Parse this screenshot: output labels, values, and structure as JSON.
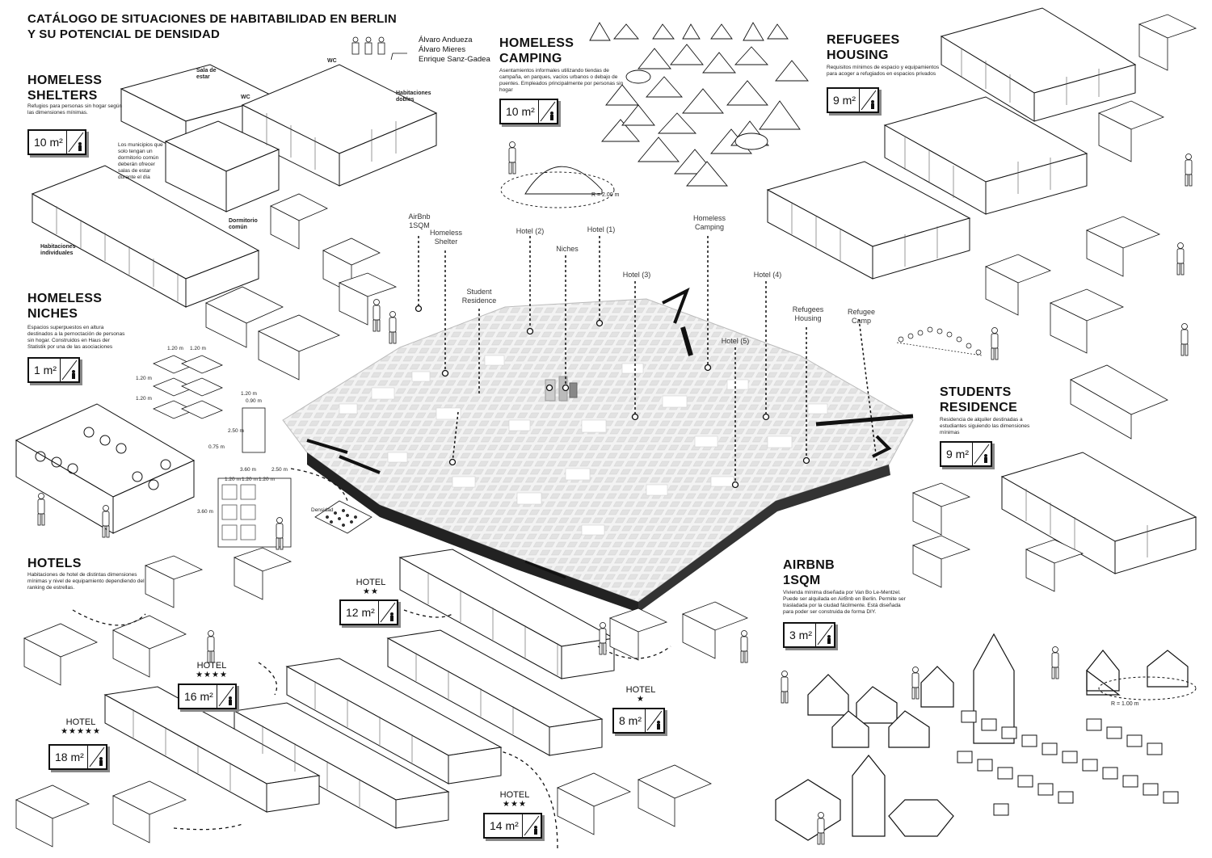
{
  "title": {
    "line1": "CATÁLOGO DE SITUACIONES DE HABITABILIDAD EN BERLIN",
    "line2": "Y SU POTENCIAL DE DENSIDAD"
  },
  "authors": [
    "Álvaro Andueza",
    "Álvaro Mieres",
    "Enrique Sanz-Gadea"
  ],
  "sections": {
    "homeless_shelters": {
      "title1": "HOMELESS",
      "title2": "SHELTERS",
      "desc": "Refugios para personas sin hogar según las dimensiones mínimas.",
      "area": "10 m²",
      "note": "Los municipios que solo tengan un dormitorio común deberán ofrecer salas de estar durante el día",
      "labels": {
        "sala": "Sala de estar",
        "wc1": "WC",
        "wc2": "WC",
        "dobles": "Habitaciones dobles",
        "dormitorio": "Dormitorio común",
        "individuales": "Habitaciones individuales"
      }
    },
    "homeless_niches": {
      "title1": "HOMELESS",
      "title2": "NICHES",
      "desc": "Espacios superpuestos en altura destinados a la pernoctación de personas sin hogar. Construidos en Haus der Statistik por una de las asociaciones",
      "area": "1 m²",
      "densidad": "Densidad"
    },
    "hotels": {
      "title": "HOTELS",
      "desc": "Habitaciones de hotel de distintas dimensiones mínimas y nivel de equipamiento dependiendo del ranking de estrellas."
    },
    "homeless_camping": {
      "title1": "HOMELESS",
      "title2": "CAMPING",
      "desc": "Asentamientos informales utilizando tiendas de campaña, en parques, vacíos urbanos o debajo de puentes. Empleados principalmente por personas sin hogar",
      "area": "10 m²",
      "radius": "R = 2.00 m"
    },
    "refugees_housing": {
      "title1": "REFUGEES",
      "title2": "HOUSING",
      "desc": "Requisitos mínimos de espacio y equipamientos para acoger a refugiados en espacios privados",
      "area": "9 m²"
    },
    "students_residence": {
      "title1": "STUDENTS",
      "title2": "RESIDENCE",
      "desc": "Residencia de alquiler destinadas a estudiantes siguiendo las dimensiones mínimas",
      "area": "9 m²"
    },
    "airbnb": {
      "title1": "AIRBNB",
      "title2": "1SQM",
      "desc": "Vivienda mínima diseñada por Van Bo Le-Mentzel. Puede ser alquilada en AirBnb en Berlin. Permite ser trasladada por la ciudad fácilmente. Está diseñada para poder ser construida de forma DIY.",
      "area": "3 m²",
      "radius": "R = 1.00 m"
    }
  },
  "hotel_boxes": [
    {
      "label": "HOTEL",
      "stars": "★★",
      "area": "12 m²"
    },
    {
      "label": "HOTEL",
      "stars": "★★★★",
      "area": "16 m²"
    },
    {
      "label": "HOTEL",
      "stars": "★★★★★",
      "area": "18 m²"
    },
    {
      "label": "HOTEL",
      "stars": "★",
      "area": "8 m²"
    },
    {
      "label": "HOTEL",
      "stars": "★★★",
      "area": "14 m²"
    }
  ],
  "map_labels": {
    "airbnb": "AirBnb\n1SQM",
    "shelter": "Homeless\nShelter",
    "student": "Student\nResidence",
    "hotel2": "Hotel (2)",
    "niches": "Niches",
    "hotel1": "Hotel (1)",
    "camping": "Homeless\nCamping",
    "hotel3": "Hotel (3)",
    "hotel4": "Hotel (4)",
    "hotel5": "Hotel (5)",
    "refugees": "Refugees\nHousing",
    "camp": "Refugee\nCamp"
  },
  "dimensions": [
    "1.20 m",
    "1.20 m",
    "1.20 m",
    "1.20 m",
    "1.20 m",
    "0.90 m",
    "2.50 m",
    "3.60 m",
    "2.50 m",
    "3.60 m",
    "1.20 m",
    "1.20 m",
    "1.20 m",
    "0.75 m"
  ]
}
